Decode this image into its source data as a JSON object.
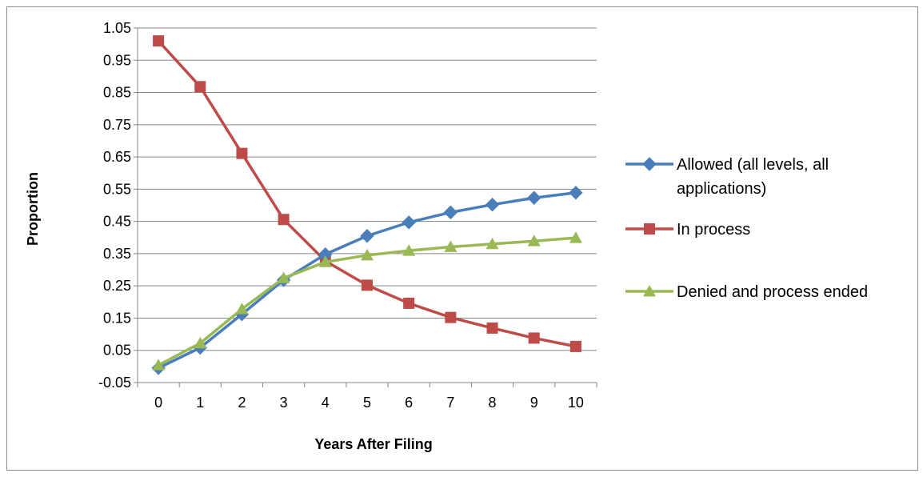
{
  "chart_data": {
    "type": "line",
    "title": "",
    "xlabel": "Years After Filing",
    "ylabel": "Proportion",
    "x": [
      "0",
      "1",
      "2",
      "3",
      "4",
      "5",
      "6",
      "7",
      "8",
      "9",
      "10"
    ],
    "y_ticks": [
      "-0.05",
      "0.05",
      "0.15",
      "0.25",
      "0.35",
      "0.45",
      "0.55",
      "0.65",
      "0.75",
      "0.85",
      "0.95",
      "1.05"
    ],
    "ylim": [
      -0.05,
      1.05
    ],
    "grid": "horizontal",
    "legend_position": "right",
    "series": [
      {
        "name": "Allowed (all levels, all applications)",
        "legend_lines": [
          "Allowed (all levels, all",
          "applications)"
        ],
        "marker": "diamond",
        "color": "#4a7ebb",
        "values": [
          -0.005,
          0.058,
          0.162,
          0.268,
          0.348,
          0.405,
          0.447,
          0.478,
          0.502,
          0.523,
          0.539
        ]
      },
      {
        "name": "In process",
        "legend_lines": [
          "In process"
        ],
        "marker": "square",
        "color": "#be4b48",
        "values": [
          1.01,
          0.868,
          0.661,
          0.456,
          0.327,
          0.252,
          0.196,
          0.152,
          0.119,
          0.088,
          0.062
        ]
      },
      {
        "name": "Denied and process ended",
        "legend_lines": [
          "Denied and process ended"
        ],
        "marker": "triangle",
        "color": "#98b954",
        "values": [
          0.004,
          0.072,
          0.178,
          0.274,
          0.324,
          0.345,
          0.359,
          0.371,
          0.38,
          0.389,
          0.399
        ]
      }
    ]
  }
}
